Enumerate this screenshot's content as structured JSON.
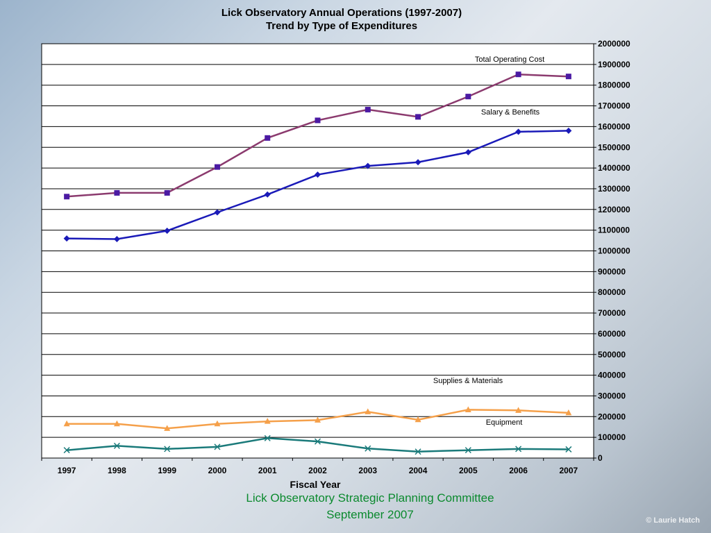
{
  "header": {
    "title": "Lick Observatory Annual Operations (1997-2007)",
    "subtitle": "Trend by Type of  Expenditures"
  },
  "footer": {
    "line1": "Lick Observatory Strategic Planning Committee",
    "line2": "September 2007"
  },
  "watermark": "© Laurie Hatch",
  "chart_data": {
    "type": "line",
    "title": "Lick Observatory Annual Operations (1997-2007)",
    "subtitle": "Trend by Type of  Expenditures",
    "xlabel": "Fiscal Year",
    "ylabel": "",
    "x": [
      "1997",
      "1998",
      "1999",
      "2000",
      "2001",
      "2002",
      "2003",
      "2004",
      "2005",
      "2006",
      "2007"
    ],
    "ylim": [
      0,
      2000000
    ],
    "ytick_step": 100000,
    "grid": true,
    "y_axis_side": "right",
    "series": [
      {
        "name": "Total Operating Cost",
        "color": "#8b3a6e",
        "marker": "square",
        "marker_color": "#4b1aa3",
        "values": [
          1262000,
          1280000,
          1280000,
          1405000,
          1545000,
          1630000,
          1682000,
          1647000,
          1745000,
          1852000,
          1842000
        ]
      },
      {
        "name": "Salary & Benefits",
        "color": "#1a1ab8",
        "marker": "diamond",
        "marker_color": "#1a1ab8",
        "values": [
          1060000,
          1057000,
          1097000,
          1186000,
          1272000,
          1368000,
          1410000,
          1428000,
          1476000,
          1575000,
          1580000
        ]
      },
      {
        "name": "Supplies & Materials",
        "color": "#f5a04a",
        "marker": "triangle",
        "marker_color": "#f5a04a",
        "values": [
          165000,
          165000,
          143000,
          165000,
          177000,
          183000,
          223000,
          185000,
          233000,
          230000,
          218000
        ]
      },
      {
        "name": "Equipment",
        "color": "#1a7a7a",
        "marker": "x",
        "marker_color": "#1a7a7a",
        "values": [
          38000,
          59000,
          44000,
          54000,
          96000,
          80000,
          46000,
          31000,
          38000,
          44000,
          42000
        ]
      }
    ]
  }
}
